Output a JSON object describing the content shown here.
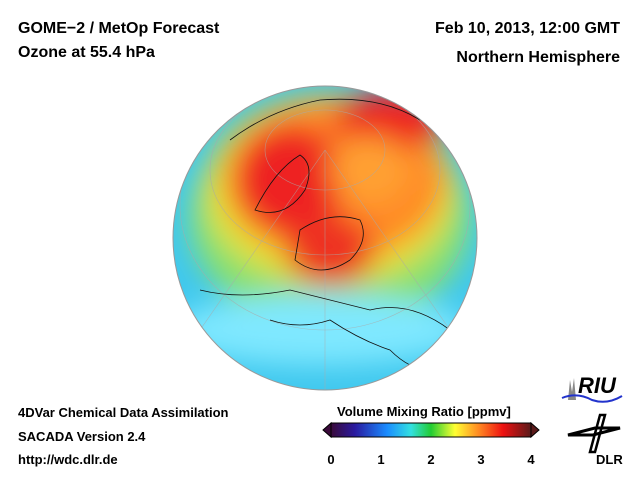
{
  "header": {
    "title": "GOME−2 / MetOp Forecast",
    "subtitle": "Ozone at 55.4 hPa",
    "date": "Feb 10, 2013, 12:00 GMT",
    "region": "Northern Hemisphere"
  },
  "footer": {
    "line1": "4DVar Chemical Data Assimilation",
    "line2": "SACADA Version 2.4",
    "line3": "http://wdc.dlr.de"
  },
  "colorbar": {
    "title": "Volume Mixing Ratio [ppmv]",
    "ticks": [
      "0",
      "1",
      "2",
      "3",
      "4"
    ],
    "range": [
      0,
      4
    ],
    "stops": [
      "#3a0a3a",
      "#2a1aa0",
      "#1a8cff",
      "#33e0e0",
      "#22cc33",
      "#ffff33",
      "#ff8822",
      "#ee1111",
      "#5a1a1a"
    ]
  },
  "logos": {
    "riu": "RIU",
    "dlr": "DLR"
  }
}
